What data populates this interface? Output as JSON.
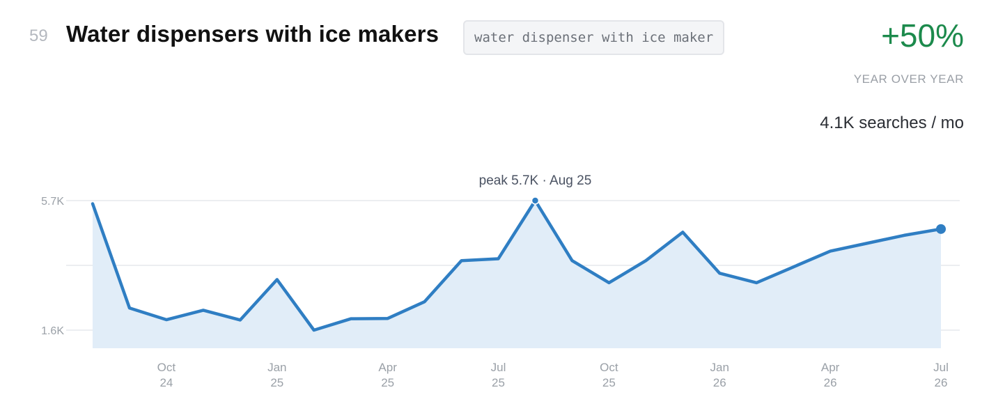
{
  "header": {
    "rank": "59",
    "title": "Water dispensers with ice makers",
    "keyword": "water dispenser with ice maker"
  },
  "stats": {
    "growth": "+50%",
    "growth_label": "YEAR OVER YEAR",
    "volume": "4.1K searches / mo",
    "growth_color": "#1c8a4c"
  },
  "chart_data": {
    "type": "area",
    "x": [
      "2024-08",
      "2024-09",
      "2024-10",
      "2024-11",
      "2024-12",
      "2025-01",
      "2025-02",
      "2025-03",
      "2025-04",
      "2025-05",
      "2025-06",
      "2025-07",
      "2025-08",
      "2025-09",
      "2025-10",
      "2025-11",
      "2025-12",
      "2026-01",
      "2026-02",
      "2026-03",
      "2026-04",
      "2026-05",
      "2026-06",
      "2026-07"
    ],
    "values": [
      5.6,
      2.3,
      1.93,
      2.23,
      1.92,
      3.2,
      1.6,
      1.96,
      1.97,
      2.5,
      3.8,
      3.86,
      5.7,
      3.8,
      3.1,
      3.8,
      4.7,
      3.4,
      3.1,
      3.6,
      4.1,
      4.35,
      4.6,
      4.8
    ],
    "series": [
      {
        "values": [
          5.6,
          2.3,
          1.93,
          2.23,
          1.92,
          3.2,
          1.6,
          1.96,
          1.97,
          2.5,
          3.8,
          3.86,
          5.7,
          3.8,
          3.1,
          3.8,
          4.7,
          3.4,
          3.1,
          3.6,
          4.1,
          4.35,
          4.6,
          4.8
        ]
      }
    ],
    "unit": "K",
    "yticks": [
      {
        "value": 1.6,
        "label": "1.6K"
      },
      {
        "value": 5.7,
        "label": "5.7K"
      }
    ],
    "xticks": [
      {
        "index": 2,
        "month": "Oct",
        "year": "24"
      },
      {
        "index": 5,
        "month": "Jan",
        "year": "25"
      },
      {
        "index": 8,
        "month": "Apr",
        "year": "25"
      },
      {
        "index": 11,
        "month": "Jul",
        "year": "25"
      },
      {
        "index": 14,
        "month": "Oct",
        "year": "25"
      },
      {
        "index": 17,
        "month": "Jan",
        "year": "26"
      },
      {
        "index": 20,
        "month": "Apr",
        "year": "26"
      },
      {
        "index": 23,
        "month": "Jul",
        "year": "26"
      }
    ],
    "annotation": {
      "index": 12,
      "text": "peak 5.7K · Aug 25"
    },
    "grid": true,
    "line_color": "#2f7ec3",
    "fill_color": "#e1edf8"
  }
}
